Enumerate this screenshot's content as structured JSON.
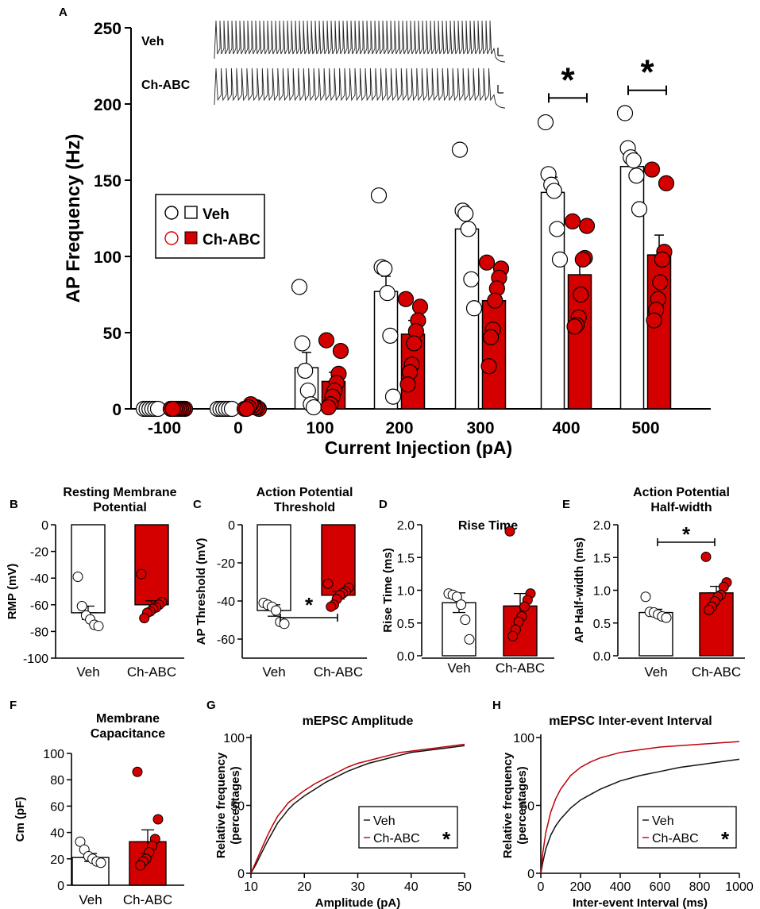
{
  "colors": {
    "veh": "#ffffff",
    "chabc": "#d40000",
    "outline": "#000000",
    "chabc_line": "#c0000a"
  },
  "chart_data": [
    {
      "panel": "A",
      "type": "bar",
      "title": "",
      "xlabel": "Current Injection (pA)",
      "ylabel": "AP Frequency (Hz)",
      "ylim": [
        0,
        250
      ],
      "yticks": [
        "0",
        "50",
        "100",
        "150",
        "200",
        "250"
      ],
      "categories": [
        "-100",
        "0",
        "100",
        "200",
        "300",
        "400",
        "500"
      ],
      "series": [
        {
          "name": "Veh",
          "values": [
            0,
            0,
            27,
            77,
            118,
            142,
            159
          ],
          "errors": [
            0,
            0,
            10,
            10,
            13,
            10,
            8
          ],
          "points": [
            [
              0,
              0,
              0,
              0,
              0,
              0
            ],
            [
              0,
              0,
              0,
              0,
              0,
              0
            ],
            [
              80,
              43,
              25,
              12,
              3,
              1
            ],
            [
              140,
              93,
              92,
              76,
              48,
              8
            ],
            [
              170,
              130,
              128,
              118,
              85,
              66
            ],
            [
              188,
              154,
              147,
              143,
              118,
              98
            ],
            [
              194,
              171,
              165,
              163,
              153,
              131
            ]
          ]
        },
        {
          "name": "Ch-ABC",
          "values": [
            0,
            1,
            18,
            49,
            71,
            88,
            101
          ],
          "errors": [
            0,
            0.5,
            6,
            9,
            9,
            11,
            13
          ],
          "points": [
            [
              0,
              0,
              0,
              0,
              0,
              0,
              0,
              0
            ],
            [
              0,
              0,
              1,
              1,
              2,
              3,
              1,
              0
            ],
            [
              45,
              38,
              23,
              17,
              12,
              8,
              3,
              1
            ],
            [
              72,
              67,
              58,
              51,
              43,
              29,
              24,
              16
            ],
            [
              96,
              92,
              86,
              79,
              71,
              52,
              47,
              28
            ],
            [
              123,
              120,
              99,
              98,
              75,
              60,
              55,
              54
            ],
            [
              157,
              148,
              103,
              98,
              83,
              72,
              65,
              58
            ]
          ]
        }
      ],
      "significance": [
        {
          "category": "400",
          "label": "*"
        },
        {
          "category": "500",
          "label": "*"
        }
      ],
      "legend": [
        "Veh",
        "Ch-ABC"
      ],
      "inset": {
        "labels": [
          "Veh",
          "Ch-ABC"
        ]
      }
    },
    {
      "panel": "B",
      "type": "bar",
      "title_lines": [
        "Resting Membrane",
        "Potential"
      ],
      "ylabel": "RMP (mV)",
      "ylim": [
        -100,
        0
      ],
      "yticks": [
        "0",
        "-20",
        "-40",
        "-60",
        "-80",
        "-100"
      ],
      "categories": [
        "Veh",
        "Ch-ABC"
      ],
      "values": [
        -66,
        -60
      ],
      "errors": [
        5,
        3
      ],
      "points": [
        [
          -39,
          -61,
          -68,
          -71,
          -75,
          -76
        ],
        [
          -37,
          -58,
          -60,
          -62,
          -63,
          -65,
          -66,
          -70
        ]
      ],
      "significance": []
    },
    {
      "panel": "C",
      "type": "bar",
      "title_lines": [
        "Action Potential",
        "Threshold"
      ],
      "ylabel": "AP Threshold (mV)",
      "ylim": [
        -70,
        0
      ],
      "yticks": [
        "0",
        "-20",
        "-40",
        "-60"
      ],
      "categories": [
        "Veh",
        "Ch-ABC"
      ],
      "values": [
        -45,
        -37
      ],
      "errors": [
        3,
        2
      ],
      "points": [
        [
          -41,
          -42,
          -43,
          -45,
          -51,
          -52
        ],
        [
          -31,
          -33,
          -35,
          -36,
          -37,
          -39,
          -42,
          -43
        ]
      ],
      "significance": [
        {
          "label": "*"
        }
      ]
    },
    {
      "panel": "D",
      "type": "bar",
      "title_lines": [
        "Rise Time"
      ],
      "ylabel": "Rise Time (ms)",
      "ylim": [
        0,
        2.0
      ],
      "yticks": [
        "0.0",
        "0.5",
        "1.0",
        "1.5",
        "2.0"
      ],
      "categories": [
        "Veh",
        "Ch-ABC"
      ],
      "values": [
        0.81,
        0.76
      ],
      "errors": [
        0.15,
        0.19
      ],
      "points": [
        [
          0.95,
          0.93,
          0.9,
          0.78,
          0.55,
          0.25
        ],
        [
          1.9,
          0.95,
          0.85,
          0.75,
          0.6,
          0.52,
          0.4,
          0.3
        ]
      ],
      "significance": []
    },
    {
      "panel": "E",
      "type": "bar",
      "title_lines": [
        "Action Potential",
        "Half-width"
      ],
      "ylabel": "AP Half-width (ms)",
      "ylim": [
        0,
        2.0
      ],
      "yticks": [
        "0.0",
        "0.5",
        "1.0",
        "1.5",
        "2.0"
      ],
      "categories": [
        "Veh",
        "Ch-ABC"
      ],
      "values": [
        0.66,
        0.96
      ],
      "errors": [
        0.05,
        0.1
      ],
      "points": [
        [
          0.9,
          0.67,
          0.66,
          0.63,
          0.6,
          0.58
        ],
        [
          1.51,
          1.12,
          1.05,
          0.93,
          0.9,
          0.83,
          0.75,
          0.7
        ]
      ],
      "significance": [
        {
          "label": "*"
        }
      ]
    },
    {
      "panel": "F",
      "type": "bar",
      "title_lines": [
        "Membrane",
        "Capacitance"
      ],
      "ylabel": "Cm (pF)",
      "ylim": [
        0,
        100
      ],
      "yticks": [
        "0",
        "20",
        "40",
        "60",
        "80",
        "100"
      ],
      "categories": [
        "Veh",
        "Ch-ABC"
      ],
      "values": [
        21,
        33
      ],
      "errors": [
        3,
        9
      ],
      "points": [
        [
          33,
          27,
          22,
          20,
          18,
          17
        ],
        [
          86,
          50,
          35,
          30,
          25,
          20,
          18,
          15
        ]
      ],
      "significance": []
    },
    {
      "panel": "G",
      "type": "line",
      "title": "mEPSC Amplitude",
      "xlabel": "Amplitude (pA)",
      "ylabel_lines": [
        "Relative frequency",
        "(percentages)"
      ],
      "xlim": [
        10,
        50
      ],
      "ylim": [
        0,
        100
      ],
      "xticks": [
        "10",
        "20",
        "30",
        "40",
        "50"
      ],
      "yticks": [
        "0",
        "50",
        "100"
      ],
      "series": [
        {
          "name": "Veh",
          "x": [
            10,
            11,
            12,
            13,
            14,
            15,
            16,
            17,
            18,
            19,
            20,
            22,
            24,
            26,
            28,
            30,
            32,
            34,
            36,
            38,
            40,
            42,
            44,
            46,
            48,
            50
          ],
          "y": [
            0,
            7,
            15,
            23,
            30,
            37,
            42,
            47,
            51,
            54,
            57,
            62,
            67,
            71,
            75,
            78,
            81,
            83,
            85,
            87,
            89,
            90,
            91,
            92,
            93,
            94
          ]
        },
        {
          "name": "Ch-ABC",
          "x": [
            10,
            11,
            12,
            13,
            14,
            15,
            16,
            17,
            18,
            19,
            20,
            22,
            24,
            26,
            28,
            30,
            32,
            34,
            36,
            38,
            40,
            42,
            44,
            46,
            48,
            50
          ],
          "y": [
            0,
            9,
            18,
            27,
            35,
            42,
            47,
            52,
            55,
            58,
            61,
            66,
            70,
            74,
            78,
            81,
            83,
            85,
            87,
            89,
            90,
            91,
            92,
            93,
            94,
            95
          ]
        }
      ],
      "legend": [
        "Veh",
        "Ch-ABC"
      ],
      "significance": [
        {
          "label": "*"
        }
      ]
    },
    {
      "panel": "H",
      "type": "line",
      "title": "mEPSC Inter-event Interval",
      "xlabel": "Inter-event Interval (ms)",
      "ylabel_lines": [
        "Relative frequency",
        "(percentages)"
      ],
      "xlim": [
        0,
        1000
      ],
      "ylim": [
        0,
        100
      ],
      "xticks": [
        "0",
        "200",
        "400",
        "600",
        "800",
        "1000"
      ],
      "yticks": [
        "0",
        "50",
        "100"
      ],
      "series": [
        {
          "name": "Veh",
          "x": [
            0,
            10,
            25,
            50,
            75,
            100,
            150,
            200,
            250,
            300,
            400,
            500,
            600,
            700,
            800,
            900,
            1000
          ],
          "y": [
            0,
            8,
            18,
            28,
            35,
            40,
            48,
            54,
            58,
            62,
            68,
            72,
            75,
            78,
            80,
            82,
            84
          ]
        },
        {
          "name": "Ch-ABC",
          "x": [
            0,
            10,
            25,
            50,
            75,
            100,
            150,
            200,
            250,
            300,
            400,
            500,
            600,
            700,
            800,
            900,
            1000
          ],
          "y": [
            0,
            15,
            30,
            45,
            55,
            62,
            72,
            78,
            82,
            85,
            89,
            91,
            93,
            94,
            95,
            96,
            97
          ]
        }
      ],
      "legend": [
        "Veh",
        "Ch-ABC"
      ],
      "significance": [
        {
          "label": "*"
        }
      ]
    }
  ],
  "panel_letters": [
    "A",
    "B",
    "C",
    "D",
    "E",
    "F",
    "G",
    "H"
  ]
}
